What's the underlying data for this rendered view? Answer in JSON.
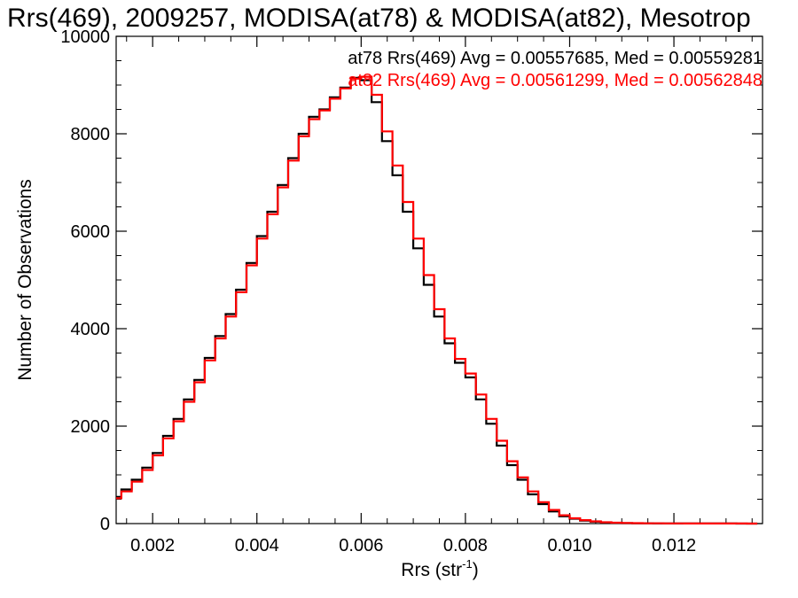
{
  "chart_data": {
    "type": "line",
    "title": "Rrs(469), 2009257, MODISA(at78) & MODISA(at82), Mesotrop",
    "xlabel_main": "Rrs (str",
    "xlabel_sup": "-1",
    "xlabel_close": ")",
    "ylabel": "Number of Observations",
    "xlim": [
      0.0013,
      0.0137
    ],
    "ylim": [
      0,
      10000
    ],
    "x_ticks": [
      0.002,
      0.004,
      0.006,
      0.008,
      0.01,
      0.012
    ],
    "x_tick_labels": [
      "0.002",
      "0.004",
      "0.006",
      "0.008",
      "0.010",
      "0.012"
    ],
    "y_ticks": [
      0,
      2000,
      4000,
      6000,
      8000,
      10000
    ],
    "y_tick_labels": [
      "0",
      "2000",
      "4000",
      "6000",
      "8000",
      "10000"
    ],
    "grid": false,
    "step": true,
    "annotations": [
      {
        "text": "at78 Rrs(469) Avg = 0.00557685, Med = 0.00559281",
        "color": "#000000"
      },
      {
        "text": "at82 Rrs(469) Avg = 0.00561299, Med = 0.00562848",
        "color": "#ff0000"
      }
    ],
    "x": [
      0.0013,
      0.0015,
      0.0017,
      0.0019,
      0.0021,
      0.0023,
      0.0025,
      0.0027,
      0.0029,
      0.0031,
      0.0033,
      0.0035,
      0.0037,
      0.0039,
      0.0041,
      0.0043,
      0.0045,
      0.0047,
      0.0049,
      0.0051,
      0.0053,
      0.0055,
      0.0057,
      0.0059,
      0.0061,
      0.0063,
      0.0065,
      0.0067,
      0.0069,
      0.0071,
      0.0073,
      0.0075,
      0.0077,
      0.0079,
      0.0081,
      0.0083,
      0.0085,
      0.0087,
      0.0089,
      0.0091,
      0.0093,
      0.0095,
      0.0097,
      0.0099,
      0.0101,
      0.0103,
      0.0105,
      0.0107,
      0.0109,
      0.0111,
      0.0113,
      0.0115,
      0.0117,
      0.0119,
      0.0121,
      0.0123,
      0.0125,
      0.0127,
      0.0129,
      0.0131,
      0.0133,
      0.0135
    ],
    "series": [
      {
        "name": "at78",
        "color": "#000000",
        "values": [
          550,
          700,
          900,
          1150,
          1450,
          1800,
          2150,
          2550,
          2950,
          3400,
          3850,
          4300,
          4800,
          5350,
          5900,
          6400,
          6950,
          7500,
          8000,
          8350,
          8500,
          8750,
          8950,
          9150,
          9100,
          8650,
          7850,
          7150,
          6400,
          5650,
          4900,
          4250,
          3700,
          3300,
          3000,
          2550,
          2050,
          1600,
          1200,
          900,
          600,
          400,
          250,
          150,
          100,
          60,
          40,
          25,
          15,
          10,
          8,
          5,
          4,
          3,
          2,
          2,
          1,
          1,
          1,
          1,
          0,
          0
        ]
      },
      {
        "name": "at82",
        "color": "#ff0000",
        "values": [
          520,
          660,
          860,
          1100,
          1400,
          1750,
          2100,
          2500,
          2900,
          3350,
          3800,
          4250,
          4750,
          5300,
          5850,
          6350,
          6900,
          7450,
          7950,
          8300,
          8480,
          8720,
          8930,
          9130,
          9170,
          8800,
          8050,
          7350,
          6600,
          5850,
          5100,
          4400,
          3800,
          3380,
          3080,
          2650,
          2150,
          1700,
          1280,
          950,
          660,
          440,
          280,
          170,
          110,
          70,
          45,
          28,
          18,
          12,
          9,
          6,
          5,
          4,
          3,
          2,
          2,
          1,
          1,
          1,
          1,
          0
        ]
      }
    ]
  }
}
